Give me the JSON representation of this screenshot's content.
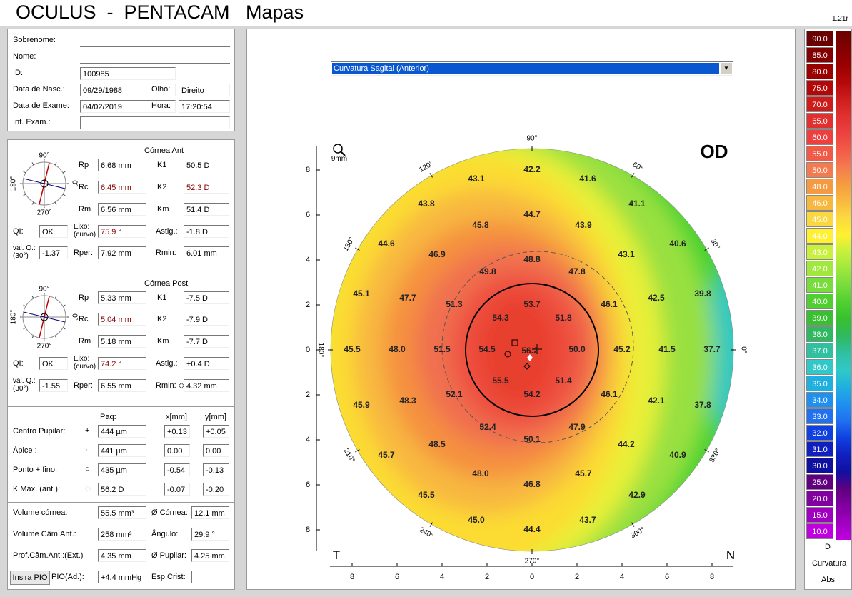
{
  "header": {
    "title": "OCULUS  -  PENTACAM   Mapas",
    "version": "1.21r"
  },
  "patient": {
    "surname_label": "Sobrenome:",
    "name_label": "Nome:",
    "id_label": "ID:",
    "id": "100985",
    "birth_label": "Data de Nasc.:",
    "birth": "09/29/1988",
    "eye_label": "Olho:",
    "eye": "Direito",
    "exam_date_label": "Data de Exame:",
    "exam_date": "04/02/2019",
    "time_label": "Hora:",
    "time": "17:20:54",
    "info_label": "Inf. Exam.:"
  },
  "anterior": {
    "title": "Córnea Ant",
    "compass": [
      "90°",
      "180°",
      "0°",
      "270°"
    ],
    "fields": [
      {
        "label": "Rp",
        "value": "6.68 mm"
      },
      {
        "label": "K1",
        "value": "50.5 D"
      },
      {
        "label": "Rc",
        "value": "6.45 mm"
      },
      {
        "label": "K2",
        "value": "52.3 D"
      },
      {
        "label": "Rm",
        "value": "6.56 mm"
      },
      {
        "label": "Km",
        "value": "51.4 D"
      },
      {
        "label": "QI:",
        "value": "OK"
      },
      {
        "label": "Eixo:\n(curvo)",
        "value": "75.9 °"
      },
      {
        "label": "Astig.:",
        "value": "-1.8 D"
      },
      {
        "label": "val. Q.:\n(30°)",
        "value": "-1.37"
      },
      {
        "label": "Rper:",
        "value": "7.92 mm"
      },
      {
        "label": "Rmin:",
        "value": "6.01 mm"
      }
    ]
  },
  "posterior": {
    "title": "Córnea Post",
    "compass": [
      "90°",
      "180°",
      "0°",
      "270°"
    ],
    "fields": [
      {
        "label": "Rp",
        "value": "5.33 mm"
      },
      {
        "label": "K1",
        "value": "-7.5 D"
      },
      {
        "label": "Rc",
        "value": "5.04 mm"
      },
      {
        "label": "K2",
        "value": "-7.9 D"
      },
      {
        "label": "Rm",
        "value": "5.18 mm"
      },
      {
        "label": "Km",
        "value": "-7.7 D"
      },
      {
        "label": "QI:",
        "value": "OK"
      },
      {
        "label": "Eixo:\n(curvo)",
        "value": "74.2 °"
      },
      {
        "label": "Astig.:",
        "value": "+0.4 D"
      },
      {
        "label": "val. Q.:\n(30°)",
        "value": "-1.55"
      },
      {
        "label": "Rper:",
        "value": "6.55 mm"
      },
      {
        "label": "Rmin: ◇",
        "value": "4.32 mm"
      }
    ]
  },
  "pachy": {
    "headers": [
      "Paq:",
      "x[mm]",
      "y[mm]"
    ],
    "rows": [
      {
        "label": "Centro Pupilar:",
        "symbol": "+",
        "paq": "444 µm",
        "x": "+0.13",
        "y": "+0.05"
      },
      {
        "label": "Ápice :",
        "symbol": "·",
        "paq": "441 µm",
        "x": "0.00",
        "y": "0.00"
      },
      {
        "label": "Ponto + fino:",
        "symbol": "○",
        "paq": "435 µm",
        "x": "-0.54",
        "y": "-0.13"
      },
      {
        "label": "K Máx. (ant.):",
        "symbol": "◇",
        "paq": "56.2 D",
        "x": "-0.07",
        "y": "-0.20"
      }
    ]
  },
  "volume": {
    "rows": [
      {
        "label": "Volume córnea:",
        "value": "55.5 mm³",
        "label2": "Ø Córnea:",
        "value2": "12.1 mm"
      },
      {
        "label": "Volume Câm.Ant.:",
        "value": "258 mm³",
        "label2": "Ângulo:",
        "value2": "29.9 °"
      },
      {
        "label": "Prof.Câm.Ant.:(Ext.)",
        "value": "4.35 mm",
        "label2": "Ø Pupilar:",
        "value2": "4.25 mm"
      },
      {
        "button": "Insira PIO",
        "label": "PIO(Ad.):",
        "value": "+4.4 mmHg",
        "label2": "Esp.Crist:"
      }
    ]
  },
  "map": {
    "selector": "Curvatura Sagital (Anterior)",
    "zoom": "9mm",
    "eye": "OD",
    "temporal": "T",
    "nasal": "N",
    "axis_ticks": [
      "8",
      "6",
      "4",
      "2",
      "0",
      "2",
      "4",
      "6",
      "8"
    ],
    "angles": [
      "90°",
      "60°",
      "30°",
      "0°",
      "330°",
      "300°",
      "270°",
      "240°",
      "210°",
      "180°",
      "150°",
      "120°"
    ],
    "values": [
      "43.1",
      "42.2",
      "41.6",
      "43.8",
      "44.7",
      "41.1",
      "45.8",
      "43.9",
      "44.6",
      "46.9",
      "48.8",
      "43.1",
      "40.6",
      "49.8",
      "47.8",
      "45.1",
      "47.7",
      "51.3",
      "53.7",
      "46.1",
      "42.5",
      "39.8",
      "54.3",
      "51.8",
      "45.5",
      "48.0",
      "51.5",
      "54.5",
      "56.2",
      "50.0",
      "45.2",
      "41.5",
      "37.7",
      "55.5",
      "51.4",
      "52.1",
      "54.2",
      "46.1",
      "45.9",
      "48.3",
      "42.1",
      "37.8",
      "52.4",
      "47.9",
      "48.5",
      "50.1",
      "44.2",
      "45.7",
      "40.9",
      "48.0",
      "45.7",
      "46.8",
      "45.5",
      "42.9",
      "45.0",
      "44.4",
      "43.7"
    ]
  },
  "color_scale": {
    "steps": [
      {
        "label": "90.0",
        "color": "#6b0000"
      },
      {
        "label": "85.0",
        "color": "#820000"
      },
      {
        "label": "80.0",
        "color": "#9a0000"
      },
      {
        "label": "75.0",
        "color": "#b40808"
      },
      {
        "label": "70.0",
        "color": "#cc1c1c"
      },
      {
        "label": "65.0",
        "color": "#e03030"
      },
      {
        "label": "60.0",
        "color": "#ec4040"
      },
      {
        "label": "55.0",
        "color": "#f25a48"
      },
      {
        "label": "50.0",
        "color": "#f47a50"
      },
      {
        "label": "48.0",
        "color": "#f59a40"
      },
      {
        "label": "46.0",
        "color": "#f8b840"
      },
      {
        "label": "45.0",
        "color": "#fbd840"
      },
      {
        "label": "44.0",
        "color": "#fff030"
      },
      {
        "label": "43.0",
        "color": "#c8f03c"
      },
      {
        "label": "42.0",
        "color": "#a0e83c"
      },
      {
        "label": "41.0",
        "color": "#78dc3c"
      },
      {
        "label": "40.0",
        "color": "#50d030"
      },
      {
        "label": "39.0",
        "color": "#38c030"
      },
      {
        "label": "38.0",
        "color": "#30b860"
      },
      {
        "label": "37.0",
        "color": "#30c0a0"
      },
      {
        "label": "36.0",
        "color": "#30c8c8"
      },
      {
        "label": "35.0",
        "color": "#20b0e0"
      },
      {
        "label": "34.0",
        "color": "#2090f0"
      },
      {
        "label": "33.0",
        "color": "#2070f0"
      },
      {
        "label": "32.0",
        "color": "#1040e0"
      },
      {
        "label": "31.0",
        "color": "#1020c0"
      },
      {
        "label": "30.0",
        "color": "#1010a0"
      },
      {
        "label": "25.0",
        "color": "#600080"
      },
      {
        "label": "20.0",
        "color": "#8000a0"
      },
      {
        "label": "15.0",
        "color": "#a000c0"
      },
      {
        "label": "10.0",
        "color": "#c000e0"
      }
    ],
    "unit": "D",
    "kind": "Curvatura",
    "mode": "Abs"
  }
}
